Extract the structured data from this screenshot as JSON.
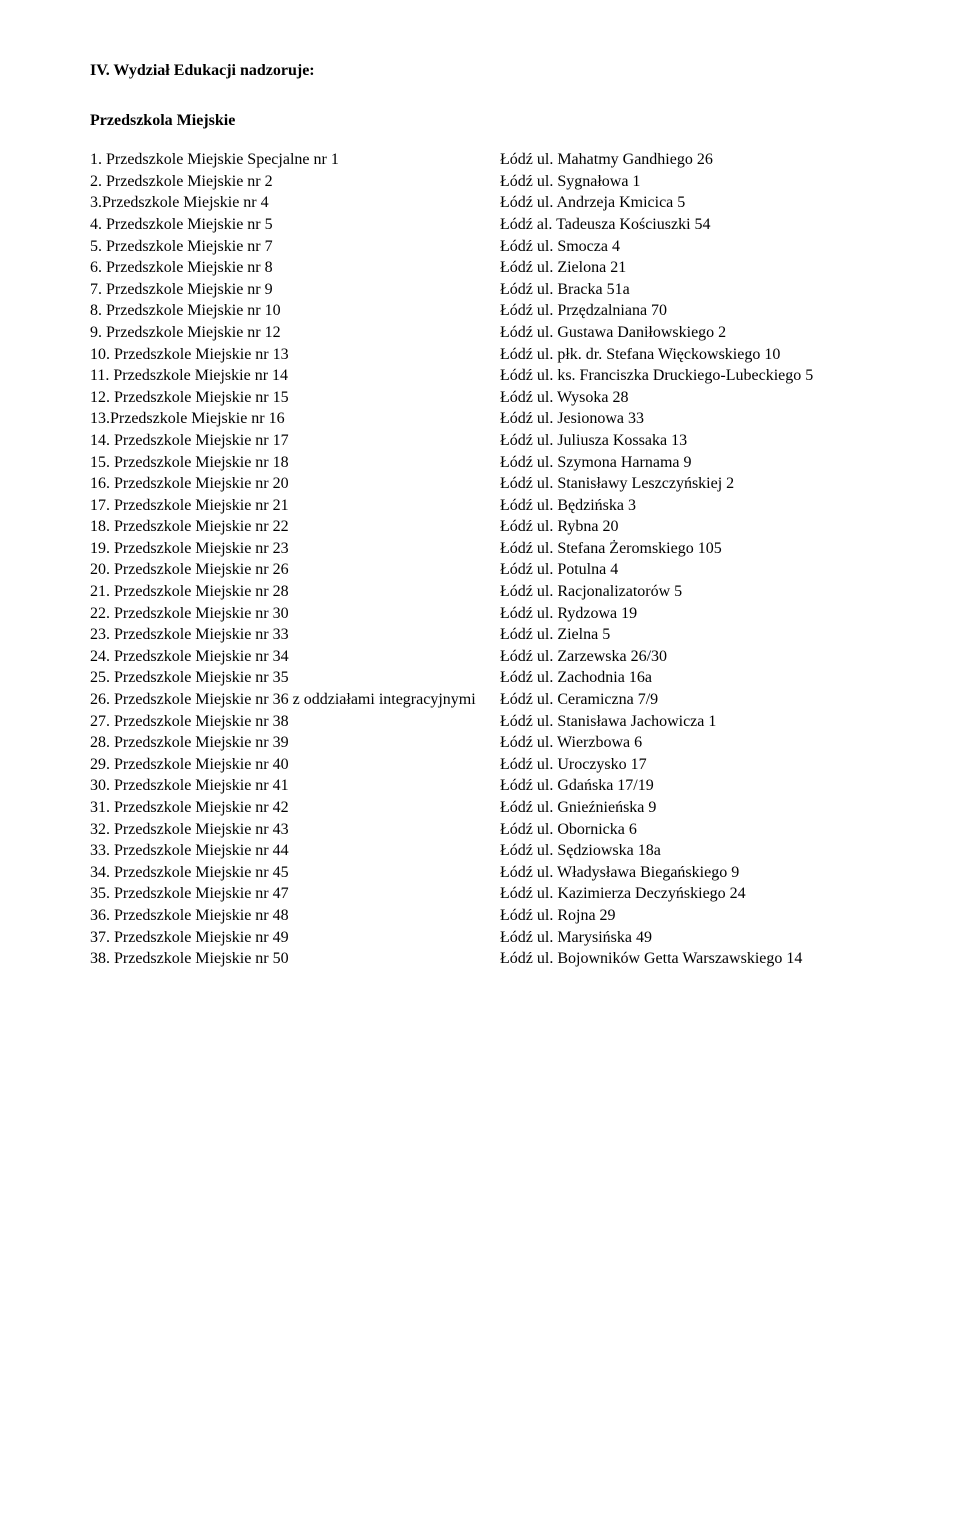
{
  "section_title": "IV. Wydział Edukacji nadzoruje:",
  "sub_title": "Przedszkola Miejskie",
  "rows": [
    {
      "l": "1. Przedszkole Miejskie Specjalne nr 1",
      "r": "Łódź ul. Mahatmy Gandhiego 26"
    },
    {
      "l": "2. Przedszkole Miejskie nr 2",
      "r": "Łódź ul. Sygnałowa 1"
    },
    {
      "l": "3.Przedszkole Miejskie nr 4",
      "r": "Łódź ul. Andrzeja Kmicica 5"
    },
    {
      "l": "4. Przedszkole Miejskie nr 5",
      "r": "Łódź al. Tadeusza Kościuszki 54"
    },
    {
      "l": "5. Przedszkole Miejskie nr 7",
      "r": "Łódź ul. Smocza 4"
    },
    {
      "l": "6. Przedszkole Miejskie nr 8",
      "r": "Łódź ul. Zielona 21"
    },
    {
      "l": "7. Przedszkole Miejskie nr 9",
      "r": "Łódź ul. Bracka 51a"
    },
    {
      "l": "8. Przedszkole Miejskie nr 10",
      "r": "Łódź ul. Przędzalniana 70"
    },
    {
      "l": "9. Przedszkole Miejskie nr 12",
      "r": "Łódź ul. Gustawa Daniłowskiego 2"
    },
    {
      "l": "10. Przedszkole Miejskie nr 13",
      "r": "Łódź ul. płk. dr. Stefana Więckowskiego 10"
    },
    {
      "l": "11. Przedszkole Miejskie nr 14",
      "r": "Łódź ul. ks. Franciszka Druckiego-Lubeckiego 5"
    },
    {
      "l": "12. Przedszkole Miejskie nr 15",
      "r": "Łódź ul. Wysoka 28"
    },
    {
      "l": "13.Przedszkole Miejskie nr 16",
      "r": "Łódź ul. Jesionowa 33"
    },
    {
      "l": "14. Przedszkole Miejskie nr 17",
      "r": "Łódź ul. Juliusza Kossaka 13"
    },
    {
      "l": "15. Przedszkole Miejskie nr 18",
      "r": "Łódź ul. Szymona Harnama 9"
    },
    {
      "l": "16. Przedszkole Miejskie nr 20",
      "r": "Łódź ul. Stanisławy Leszczyńskiej 2"
    },
    {
      "l": "17. Przedszkole Miejskie nr 21",
      "r": "Łódź ul. Będzińska 3"
    },
    {
      "l": "18. Przedszkole Miejskie nr 22",
      "r": "Łódź ul. Rybna 20"
    },
    {
      "l": "19. Przedszkole Miejskie nr 23",
      "r": "Łódź ul. Stefana Żeromskiego 105"
    },
    {
      "l": "20. Przedszkole Miejskie nr 26",
      "r": "Łódź ul. Potulna 4"
    },
    {
      "l": "21. Przedszkole Miejskie nr 28",
      "r": "Łódź ul. Racjonalizatorów 5"
    },
    {
      "l": "22. Przedszkole Miejskie nr 30",
      "r": "Łódź ul. Rydzowa 19"
    },
    {
      "l": "23. Przedszkole Miejskie nr 33",
      "r": "Łódź ul. Zielna 5"
    },
    {
      "l": "24. Przedszkole Miejskie nr 34",
      "r": "Łódź ul. Zarzewska 26/30"
    },
    {
      "l": "25. Przedszkole Miejskie nr 35",
      "r": "Łódź ul. Zachodnia 16a"
    },
    {
      "l": "26. Przedszkole Miejskie nr 36 z oddziałami integracyjnymi",
      "r": "Łódź ul. Ceramiczna 7/9"
    },
    {
      "l": "27. Przedszkole Miejskie nr 38",
      "r": "Łódź ul. Stanisława Jachowicza 1"
    },
    {
      "l": "28. Przedszkole Miejskie nr 39",
      "r": "Łódź ul. Wierzbowa 6"
    },
    {
      "l": "29. Przedszkole Miejskie nr 40",
      "r": "Łódź ul. Uroczysko 17"
    },
    {
      "l": "30. Przedszkole Miejskie nr 41",
      "r": "Łódź ul. Gdańska 17/19"
    },
    {
      "l": "31. Przedszkole Miejskie nr 42",
      "r": "Łódź ul. Gnieźnieńska 9"
    },
    {
      "l": "32. Przedszkole Miejskie nr 43",
      "r": "Łódź ul. Obornicka 6"
    },
    {
      "l": "33. Przedszkole Miejskie nr 44",
      "r": "Łódź ul. Sędziowska 18a"
    },
    {
      "l": "34. Przedszkole Miejskie nr 45",
      "r": "Łódź ul. Władysława Biegańskiego 9"
    },
    {
      "l": "35. Przedszkole Miejskie nr 47",
      "r": "Łódź ul. Kazimierza Deczyńskiego  24"
    },
    {
      "l": "36. Przedszkole Miejskie nr 48",
      "r": "Łódź ul. Rojna 29"
    },
    {
      "l": "37. Przedszkole Miejskie nr 49",
      "r": "Łódź ul. Marysińska 49"
    },
    {
      "l": "38. Przedszkole Miejskie nr 50",
      "r": "Łódź ul. Bojowników Getta Warszawskiego 14"
    }
  ]
}
